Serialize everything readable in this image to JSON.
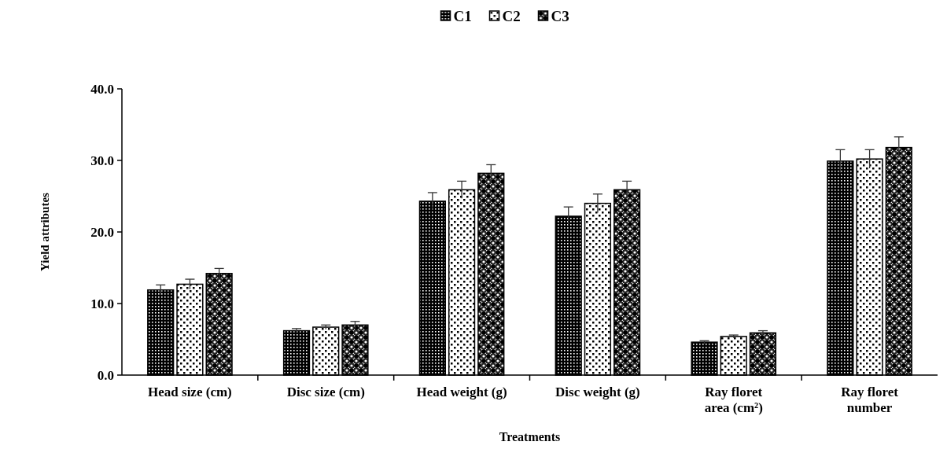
{
  "chart_data": {
    "type": "bar",
    "xlabel": "Treatments",
    "ylabel": "Yield attributes",
    "categories": [
      "Head size (cm)",
      "Disc size (cm)",
      "Head weight (g)",
      "Disc weight (g)",
      "Ray floret area (cm²)",
      "Ray floret number"
    ],
    "series": [
      {
        "name": "C1",
        "color": "#000000",
        "values": [
          11.9,
          6.2,
          24.3,
          22.2,
          4.6,
          29.9
        ],
        "errors": [
          0.7,
          0.3,
          1.2,
          1.3,
          0.2,
          1.6
        ]
      },
      {
        "name": "C2",
        "color": "#000000",
        "values": [
          12.7,
          6.7,
          25.9,
          24.0,
          5.4,
          30.2
        ],
        "errors": [
          0.7,
          0.3,
          1.2,
          1.3,
          0.2,
          1.3
        ]
      },
      {
        "name": "C3",
        "color": "#000000",
        "values": [
          14.2,
          7.0,
          28.2,
          25.9,
          5.9,
          31.8
        ],
        "errors": [
          0.7,
          0.5,
          1.2,
          1.2,
          0.3,
          1.5
        ]
      }
    ],
    "ylim": [
      0,
      40
    ],
    "yticks": [
      {
        "value": 0,
        "label": "0.0"
      },
      {
        "value": 10,
        "label": "10.0"
      },
      {
        "value": 20,
        "label": "20.0"
      },
      {
        "value": 30,
        "label": "30.0"
      },
      {
        "value": 40,
        "label": "40.0"
      }
    ],
    "grid": false,
    "legend": "top"
  }
}
